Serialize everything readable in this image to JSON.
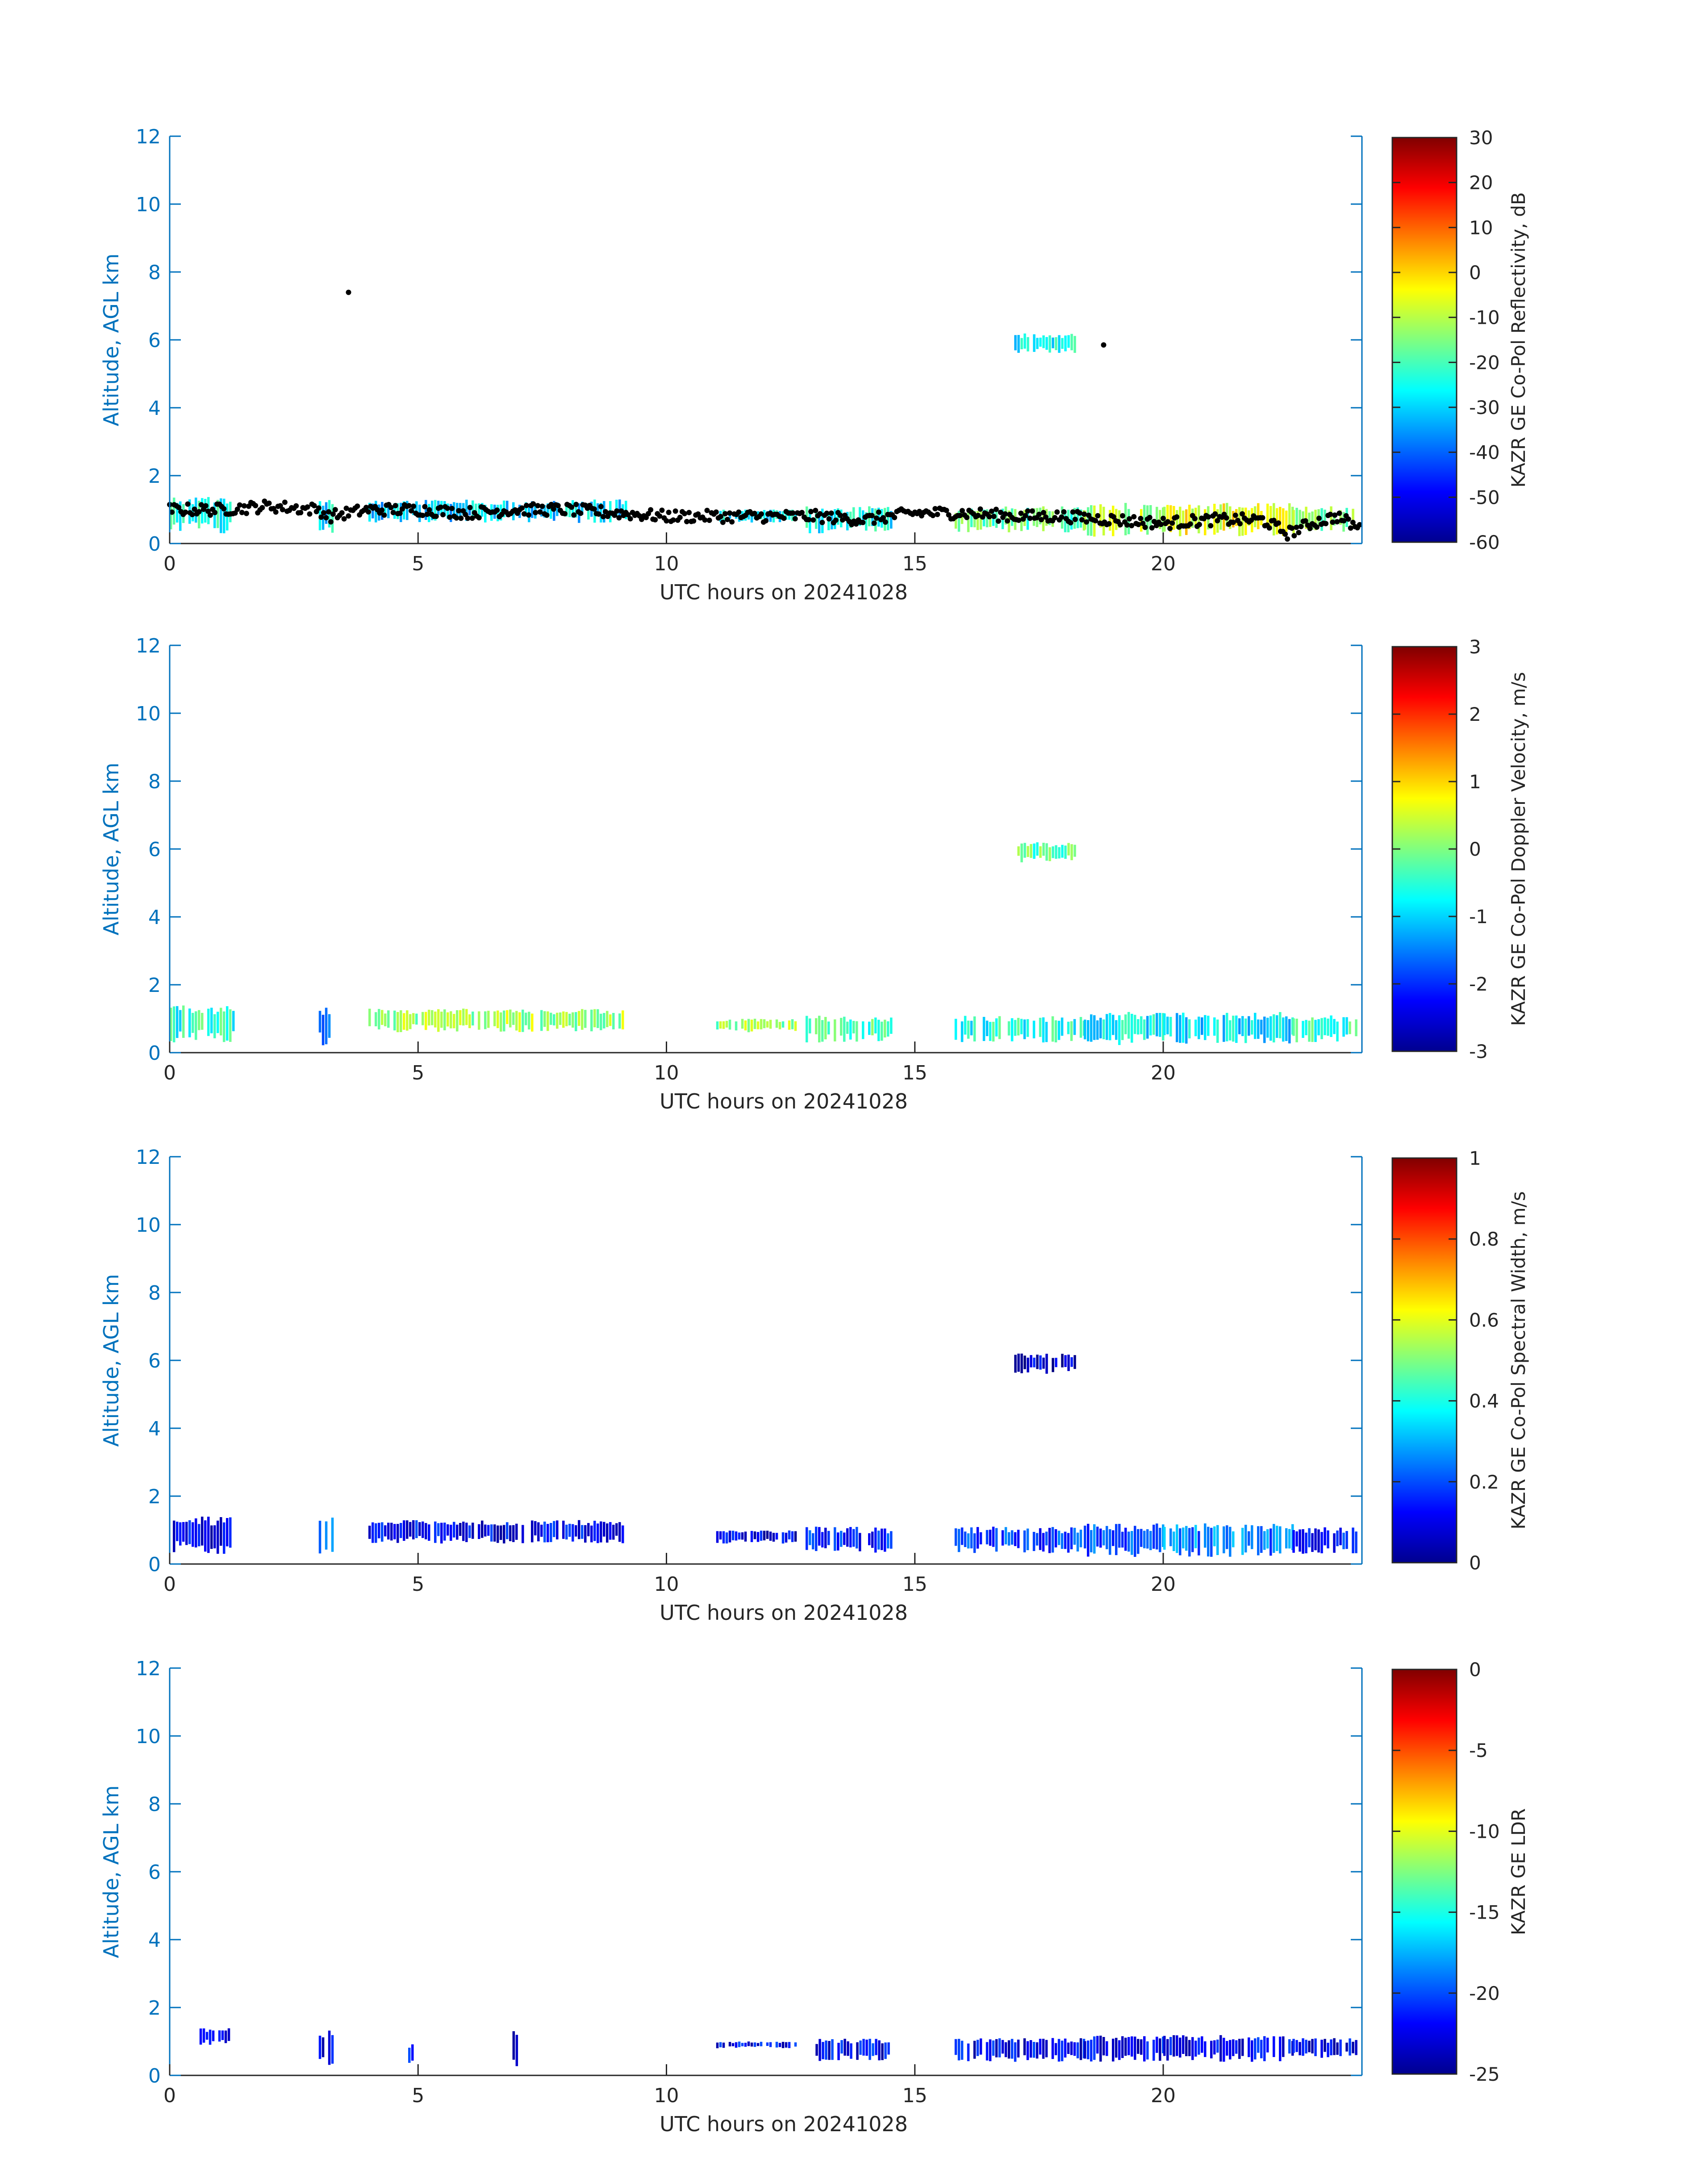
{
  "chart_data": [
    {
      "type": "heatmap",
      "variable": "reflectivity",
      "xlabel": "UTC hours on 20241028",
      "ylabel": "Altitude, AGL km",
      "xlim": [
        0,
        24
      ],
      "ylim": [
        0,
        12
      ],
      "xticks": [
        0,
        5,
        10,
        15,
        20
      ],
      "yticks": [
        0,
        2,
        4,
        6,
        8,
        10,
        12
      ],
      "colorbar": {
        "label": "KAZR GE Co-Pol Reflectivity, dB",
        "range": [
          -60,
          30
        ],
        "ticks": [
          -60,
          -50,
          -40,
          -30,
          -20,
          -10,
          0,
          10,
          20,
          30
        ],
        "colormap": "jet"
      },
      "cloud_regions": [
        {
          "x": [
            0.0,
            1.3
          ],
          "y": [
            0.3,
            1.4
          ],
          "value": -25
        },
        {
          "x": [
            3.0,
            3.3
          ],
          "y": [
            0.2,
            1.4
          ],
          "value": -28
        },
        {
          "x": [
            4.0,
            9.2
          ],
          "y": [
            0.6,
            1.3
          ],
          "value": -30
        },
        {
          "x": [
            11.0,
            12.6
          ],
          "y": [
            0.6,
            1.0
          ],
          "value": -28
        },
        {
          "x": [
            12.8,
            14.5
          ],
          "y": [
            0.3,
            1.1
          ],
          "value": -25
        },
        {
          "x": [
            15.8,
            18.4
          ],
          "y": [
            0.3,
            1.1
          ],
          "value": -18
        },
        {
          "x": [
            18.4,
            20.0
          ],
          "y": [
            0.2,
            1.2
          ],
          "value": -10
        },
        {
          "x": [
            20.0,
            22.6
          ],
          "y": [
            0.2,
            1.2
          ],
          "value": -5
        },
        {
          "x": [
            22.6,
            23.9
          ],
          "y": [
            0.3,
            1.1
          ],
          "value": -15
        },
        {
          "x": [
            17.0,
            18.2
          ],
          "y": [
            5.6,
            6.2
          ],
          "value": -25
        }
      ],
      "ceilometer_cloud_base": {
        "time": [
          0.0,
          1.0,
          2.0,
          3.0,
          3.2,
          4.0,
          5.0,
          6.0,
          7.0,
          8.0,
          9.0,
          10.0,
          11.0,
          12.0,
          13.0,
          14.0,
          15.0,
          16.0,
          17.0,
          18.0,
          19.0,
          20.0,
          21.0,
          22.0,
          22.5,
          23.0,
          23.5,
          24.0
        ],
        "altitude": [
          1.0,
          1.0,
          1.1,
          1.0,
          0.8,
          1.0,
          1.0,
          0.9,
          1.0,
          1.0,
          0.9,
          0.8,
          0.8,
          0.8,
          0.8,
          0.7,
          0.9,
          0.9,
          0.8,
          0.8,
          0.7,
          0.6,
          0.7,
          0.7,
          0.3,
          0.6,
          0.8,
          0.4
        ],
        "isolated_points": [
          [
            3.6,
            7.4
          ],
          [
            18.8,
            5.85
          ]
        ]
      }
    },
    {
      "type": "heatmap",
      "variable": "doppler_velocity",
      "xlabel": "UTC hours on 20241028",
      "ylabel": "Altitude, AGL km",
      "xlim": [
        0,
        24
      ],
      "ylim": [
        0,
        12
      ],
      "xticks": [
        0,
        5,
        10,
        15,
        20
      ],
      "yticks": [
        0,
        2,
        4,
        6,
        8,
        10,
        12
      ],
      "colorbar": {
        "label": "KAZR GE Co-Pol Doppler Velocity, m/s",
        "range": [
          -3,
          3
        ],
        "ticks": [
          -3,
          -2,
          -1,
          0,
          1,
          2,
          3
        ],
        "colormap": "jet"
      },
      "cloud_regions": [
        {
          "x": [
            0.0,
            1.3
          ],
          "y": [
            0.3,
            1.4
          ],
          "value": -0.5
        },
        {
          "x": [
            3.0,
            3.3
          ],
          "y": [
            0.2,
            1.4
          ],
          "value": -1.8
        },
        {
          "x": [
            4.0,
            9.2
          ],
          "y": [
            0.6,
            1.3
          ],
          "value": 0.2
        },
        {
          "x": [
            11.0,
            12.6
          ],
          "y": [
            0.6,
            1.0
          ],
          "value": 0.1
        },
        {
          "x": [
            12.8,
            14.5
          ],
          "y": [
            0.3,
            1.1
          ],
          "value": -0.3
        },
        {
          "x": [
            15.8,
            18.4
          ],
          "y": [
            0.3,
            1.1
          ],
          "value": -0.6
        },
        {
          "x": [
            18.4,
            20.0
          ],
          "y": [
            0.2,
            1.2
          ],
          "value": -0.8
        },
        {
          "x": [
            20.0,
            22.6
          ],
          "y": [
            0.2,
            1.2
          ],
          "value": -0.9
        },
        {
          "x": [
            22.6,
            23.9
          ],
          "y": [
            0.3,
            1.1
          ],
          "value": -0.5
        },
        {
          "x": [
            17.0,
            18.2
          ],
          "y": [
            5.6,
            6.2
          ],
          "value": -0.2
        }
      ]
    },
    {
      "type": "heatmap",
      "variable": "spectral_width",
      "xlabel": "UTC hours on 20241028",
      "ylabel": "Altitude, AGL km",
      "xlim": [
        0,
        24
      ],
      "ylim": [
        0,
        12
      ],
      "xticks": [
        0,
        5,
        10,
        15,
        20
      ],
      "yticks": [
        0,
        2,
        4,
        6,
        8,
        10,
        12
      ],
      "colorbar": {
        "label": "KAZR GE Co-Pol Spectral Width, m/s",
        "range": [
          0,
          1
        ],
        "ticks": [
          0,
          0.2,
          0.4,
          0.6,
          0.8,
          1
        ],
        "colormap": "jet"
      },
      "cloud_regions": [
        {
          "x": [
            0.0,
            1.3
          ],
          "y": [
            0.3,
            1.4
          ],
          "value": 0.12
        },
        {
          "x": [
            3.0,
            3.3
          ],
          "y": [
            0.2,
            1.4
          ],
          "value": 0.2
        },
        {
          "x": [
            4.0,
            9.2
          ],
          "y": [
            0.6,
            1.3
          ],
          "value": 0.12
        },
        {
          "x": [
            11.0,
            12.6
          ],
          "y": [
            0.6,
            1.0
          ],
          "value": 0.1
        },
        {
          "x": [
            12.8,
            14.5
          ],
          "y": [
            0.3,
            1.1
          ],
          "value": 0.15
        },
        {
          "x": [
            15.8,
            18.4
          ],
          "y": [
            0.3,
            1.1
          ],
          "value": 0.18
        },
        {
          "x": [
            18.4,
            20.0
          ],
          "y": [
            0.2,
            1.2
          ],
          "value": 0.22
        },
        {
          "x": [
            20.0,
            22.6
          ],
          "y": [
            0.2,
            1.2
          ],
          "value": 0.25
        },
        {
          "x": [
            22.6,
            23.9
          ],
          "y": [
            0.3,
            1.1
          ],
          "value": 0.15
        },
        {
          "x": [
            17.0,
            18.2
          ],
          "y": [
            5.6,
            6.2
          ],
          "value": 0.08
        }
      ]
    },
    {
      "type": "heatmap",
      "variable": "ldr",
      "xlabel": "UTC hours on 20241028",
      "ylabel": "Altitude, AGL km",
      "xlim": [
        0,
        24
      ],
      "ylim": [
        0,
        12
      ],
      "xticks": [
        0,
        5,
        10,
        15,
        20
      ],
      "yticks": [
        0,
        2,
        4,
        6,
        8,
        10,
        12
      ],
      "colorbar": {
        "label": "KAZR GE LDR",
        "range": [
          -25,
          0
        ],
        "ticks": [
          -25,
          -20,
          -15,
          -10,
          -5,
          0
        ],
        "colormap": "jet"
      },
      "cloud_regions": [
        {
          "x": [
            0.6,
            1.2
          ],
          "y": [
            0.9,
            1.4
          ],
          "value": -22
        },
        {
          "x": [
            3.0,
            3.3
          ],
          "y": [
            0.2,
            1.4
          ],
          "value": -22
        },
        {
          "x": [
            4.8,
            4.9
          ],
          "y": [
            0.2,
            1.0
          ],
          "value": -22
        },
        {
          "x": [
            6.9,
            7.0
          ],
          "y": [
            0.2,
            1.4
          ],
          "value": -22
        },
        {
          "x": [
            11.0,
            12.6
          ],
          "y": [
            0.8,
            1.0
          ],
          "value": -22
        },
        {
          "x": [
            13.0,
            14.5
          ],
          "y": [
            0.4,
            1.1
          ],
          "value": -22
        },
        {
          "x": [
            15.8,
            18.4
          ],
          "y": [
            0.4,
            1.1
          ],
          "value": -22
        },
        {
          "x": [
            18.4,
            20.0
          ],
          "y": [
            0.4,
            1.2
          ],
          "value": -22
        },
        {
          "x": [
            20.0,
            22.6
          ],
          "y": [
            0.4,
            1.2
          ],
          "value": -22
        },
        {
          "x": [
            22.6,
            23.9
          ],
          "y": [
            0.5,
            1.1
          ],
          "value": -22
        }
      ]
    }
  ]
}
